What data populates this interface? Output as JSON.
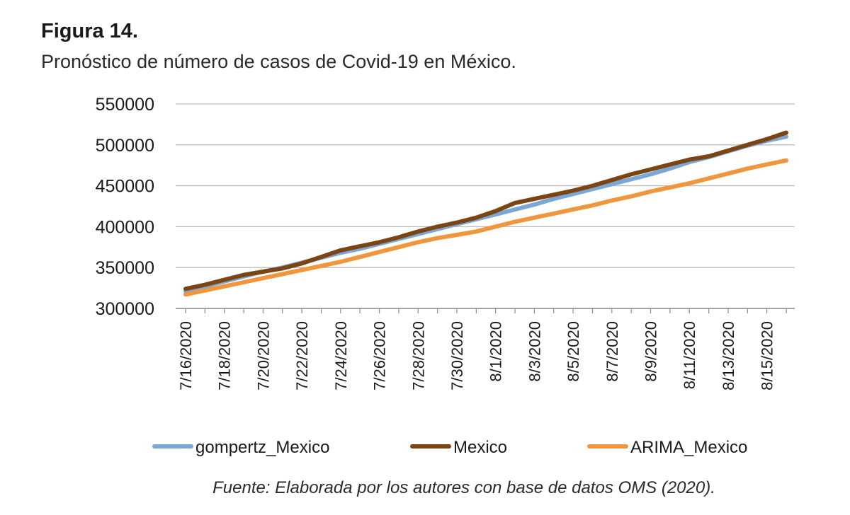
{
  "figure": {
    "label": "Figura 14.",
    "title": "Pronóstico de número de casos de Covid-19 en México.",
    "source": "Fuente: Elaborada por los autores con base de datos OMS (2020)."
  },
  "chart_data": {
    "type": "line",
    "title": "",
    "xlabel": "",
    "ylabel": "",
    "ylim": [
      300000,
      550000
    ],
    "yticks": [
      "300000",
      "350000",
      "400000",
      "450000",
      "500000",
      "550000"
    ],
    "xticks": [
      "7/16/2020",
      "7/18/2020",
      "7/20/2020",
      "7/22/2020",
      "7/24/2020",
      "7/26/2020",
      "7/28/2020",
      "7/30/2020",
      "8/1/2020",
      "8/3/2020",
      "8/5/2020",
      "8/7/2020",
      "8/9/2020",
      "8/11/2020",
      "8/13/2020",
      "8/15/2020"
    ],
    "x": [
      "7/16/2020",
      "7/17/2020",
      "7/18/2020",
      "7/19/2020",
      "7/20/2020",
      "7/21/2020",
      "7/22/2020",
      "7/23/2020",
      "7/24/2020",
      "7/25/2020",
      "7/26/2020",
      "7/27/2020",
      "7/28/2020",
      "7/29/2020",
      "7/30/2020",
      "7/31/2020",
      "8/1/2020",
      "8/2/2020",
      "8/3/2020",
      "8/4/2020",
      "8/5/2020",
      "8/6/2020",
      "8/7/2020",
      "8/8/2020",
      "8/9/2020",
      "8/10/2020",
      "8/11/2020",
      "8/12/2020",
      "8/13/2020",
      "8/14/2020",
      "8/15/2020",
      "8/16/2020"
    ],
    "grid": true,
    "legend_position": "bottom",
    "series": [
      {
        "name": "gompertz_Mexico",
        "color": "#7ba7d7",
        "values": [
          321000,
          327000,
          333000,
          339000,
          345000,
          350000,
          356000,
          362000,
          368000,
          373000,
          379000,
          385000,
          391000,
          397000,
          403000,
          409000,
          415000,
          421000,
          427000,
          434000,
          440000,
          446000,
          452000,
          458000,
          464000,
          471000,
          479000,
          485000,
          492000,
          499000,
          505000,
          510000
        ]
      },
      {
        "name": "Mexico",
        "color": "#7a4513",
        "values": [
          324000,
          329000,
          335000,
          341000,
          345000,
          349000,
          355000,
          363000,
          371000,
          376000,
          381000,
          387000,
          394000,
          400000,
          405000,
          411000,
          419000,
          429000,
          434000,
          439000,
          444000,
          450000,
          457000,
          464000,
          470000,
          476000,
          482000,
          486000,
          493000,
          500000,
          507000,
          515000
        ]
      },
      {
        "name": "ARIMA_Mexico",
        "color": "#f0963e",
        "values": [
          317000,
          322000,
          327000,
          332000,
          337000,
          342000,
          347000,
          352000,
          357000,
          363000,
          369000,
          375000,
          381000,
          386000,
          390000,
          394000,
          400000,
          406000,
          411000,
          416000,
          421000,
          426000,
          432000,
          437000,
          443000,
          448000,
          453000,
          459000,
          465000,
          471000,
          476000,
          481000
        ]
      }
    ]
  }
}
